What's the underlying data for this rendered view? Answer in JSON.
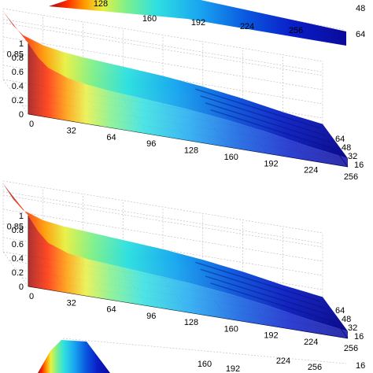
{
  "chart_data": [
    {
      "type": "surface",
      "panel": "top",
      "visibility": "partial",
      "x_ticks": [
        "128",
        "160",
        "192",
        "224",
        "256"
      ],
      "y_ticks": [
        "48",
        "64"
      ],
      "z_ticks": []
    },
    {
      "type": "surface",
      "panel": "upper-middle",
      "x_ticks": [
        "0",
        "32",
        "64",
        "96",
        "128",
        "160",
        "192",
        "224",
        "256"
      ],
      "y_ticks": [
        "16",
        "32",
        "48",
        "64"
      ],
      "z_ticks": [
        "0",
        "0.2",
        "0.4",
        "0.6",
        "0.8",
        "0.85",
        "1"
      ],
      "xlim": [
        0,
        256
      ],
      "ylim": [
        0,
        64
      ],
      "zlim": [
        0,
        1
      ],
      "profile": {
        "x": [
          0,
          8,
          16,
          32,
          48,
          64,
          96,
          128,
          160,
          192,
          224,
          256
        ],
        "z": [
          1.0,
          0.82,
          0.7,
          0.6,
          0.55,
          0.52,
          0.48,
          0.44,
          0.38,
          0.3,
          0.2,
          0.12
        ]
      },
      "grid": true
    },
    {
      "type": "surface",
      "panel": "lower-middle",
      "x_ticks": [
        "0",
        "32",
        "64",
        "96",
        "128",
        "160",
        "192",
        "224",
        "256"
      ],
      "y_ticks": [
        "16",
        "32",
        "48",
        "64"
      ],
      "z_ticks": [
        "0",
        "0.2",
        "0.4",
        "0.6",
        "0.8",
        "0.85",
        "1"
      ],
      "xlim": [
        0,
        256
      ],
      "ylim": [
        0,
        64
      ],
      "zlim": [
        0,
        1
      ],
      "profile": {
        "x": [
          0,
          8,
          16,
          32,
          48,
          64,
          96,
          128,
          160,
          192,
          224,
          256
        ],
        "z": [
          1.0,
          0.8,
          0.66,
          0.56,
          0.52,
          0.5,
          0.46,
          0.42,
          0.36,
          0.28,
          0.18,
          0.1
        ]
      },
      "grid": true
    },
    {
      "type": "surface",
      "panel": "bottom",
      "visibility": "partial",
      "x_ticks": [
        "160",
        "192",
        "224",
        "256"
      ],
      "y_ticks": [
        "16"
      ],
      "z_ticks": []
    }
  ]
}
